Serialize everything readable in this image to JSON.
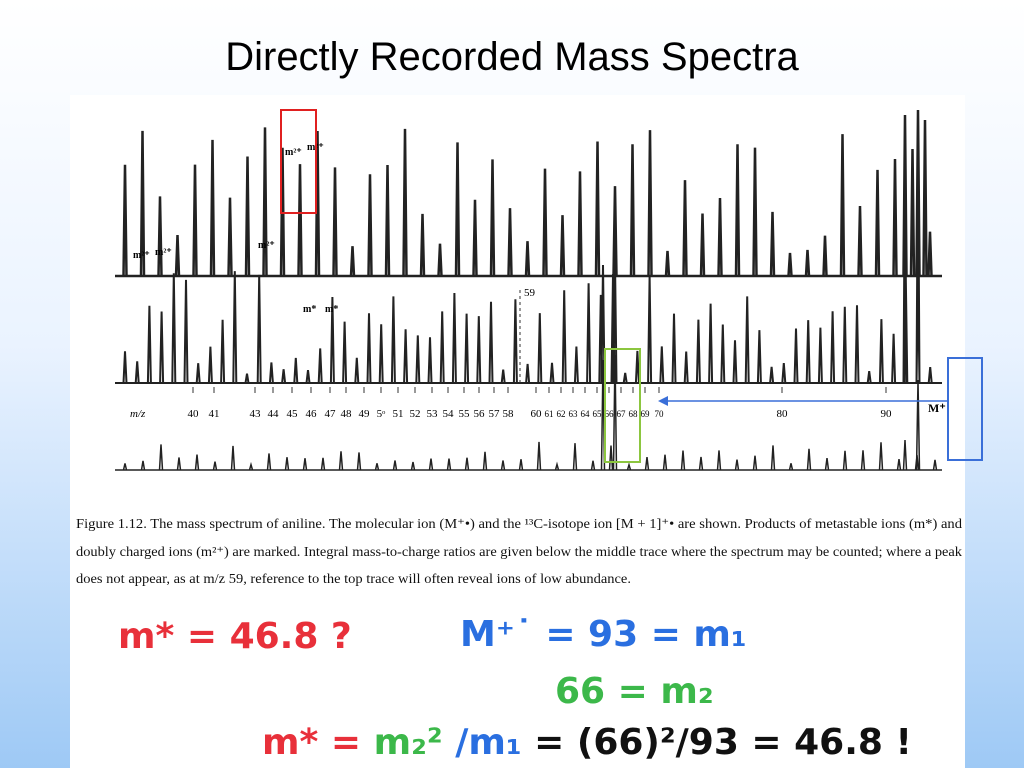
{
  "title": "Directly Recorded Mass Spectra",
  "spectrum": {
    "axis_label": "m/z",
    "tick_labels": [
      "40",
      "41",
      "43",
      "44",
      "45",
      "46",
      "47",
      "48",
      "49",
      "5ᵒ",
      "51",
      "52",
      "53",
      "54",
      "55",
      "56",
      "57",
      "58",
      "60",
      "61",
      "62",
      "63",
      "64",
      "65",
      "66",
      "67",
      "68",
      "69",
      "70",
      "80",
      "90"
    ],
    "marked_mass": "59",
    "molecular_ion": "M⁺",
    "doubly_charged": [
      "m²⁺",
      "m²⁺",
      "m²⁺",
      "m²⁺",
      "m²⁺"
    ],
    "metastable": [
      "m*",
      "m*"
    ]
  },
  "caption": [
    "Figure 1.12.  The mass spectrum of aniline. The molecular ion (M⁺•) and the ¹³C-isotope ion [M + 1]⁺• are shown. Products of metastable ions (m*) and",
    "doubly charged ions (m²⁺) are marked. Integral mass-to-charge ratios are given below the middle trace where the spectrum may be counted; where a peak",
    "does not appear, as at m/z 59, reference to the top trace will often reveal ions of low abundance."
  ],
  "notes": {
    "question": "m* = 46.8 ?",
    "parent": "M⁺˙ = 93 = m₁",
    "daughter": "66 = m₂",
    "formula": [
      "m* =",
      "m₂²",
      "/m₁",
      "= (66)²/93 = 46.8 !"
    ]
  }
}
